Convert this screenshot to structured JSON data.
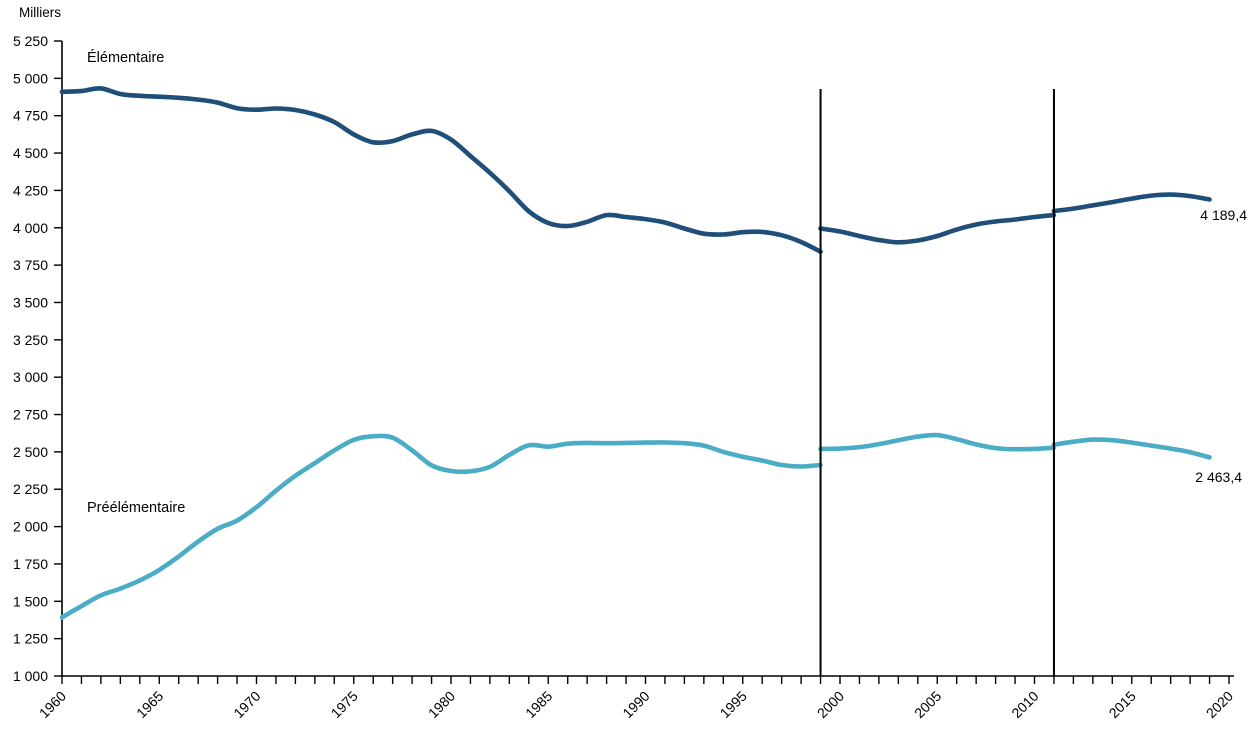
{
  "chart_data": {
    "type": "line",
    "unit_label": "Milliers",
    "text_color": "#000000",
    "axis_color": "#000000",
    "grid": "off",
    "legend_position": "labels-on-chart",
    "y_axis": {
      "min": 1000,
      "max": 5250,
      "step": 250,
      "tick_labels": [
        "1 000",
        "1 250",
        "1 500",
        "1 750",
        "2 000",
        "2 250",
        "2 500",
        "2 750",
        "3 000",
        "3 250",
        "3 500",
        "3 750",
        "4 000",
        "4 250",
        "4 500",
        "4 750",
        "5 000",
        "5 250"
      ]
    },
    "x_axis": {
      "min": 1960,
      "max": 2020,
      "minor_tick_step": 1,
      "label_step": 5,
      "tick_labels": [
        "1960",
        "1965",
        "1970",
        "1975",
        "1980",
        "1985",
        "1990",
        "1995",
        "2000",
        "2005",
        "2010",
        "2015",
        "2020"
      ]
    },
    "break_lines": {
      "years": [
        1999,
        2011
      ],
      "color": "#000000"
    },
    "series": [
      {
        "name": "Élémentaire",
        "color": "#1F4E79",
        "end_label": "4 189,4",
        "segments": [
          {
            "years": [
              1960,
              1961,
              1962,
              1963,
              1964,
              1965,
              1966,
              1967,
              1968,
              1969,
              1970,
              1971,
              1972,
              1973,
              1974,
              1975,
              1976,
              1977,
              1978,
              1979,
              1980,
              1981,
              1982,
              1983,
              1984,
              1985,
              1986,
              1987,
              1988,
              1989,
              1990,
              1991,
              1992,
              1993,
              1994,
              1995,
              1996,
              1997,
              1998,
              1999
            ],
            "values": [
              4910,
              4915,
              4933,
              4895,
              4883,
              4877,
              4870,
              4858,
              4838,
              4800,
              4790,
              4798,
              4788,
              4758,
              4708,
              4625,
              4572,
              4580,
              4625,
              4648,
              4590,
              4480,
              4368,
              4245,
              4110,
              4032,
              4012,
              4040,
              4085,
              4072,
              4058,
              4035,
              3995,
              3960,
              3955,
              3970,
              3972,
              3950,
              3905,
              3840
            ]
          },
          {
            "years": [
              1999,
              2000,
              2001,
              2002,
              2003,
              2004,
              2005,
              2006,
              2007,
              2008,
              2009,
              2010,
              2011
            ],
            "values": [
              3995,
              3975,
              3945,
              3918,
              3903,
              3915,
              3945,
              3988,
              4022,
              4042,
              4055,
              4072,
              4085
            ]
          },
          {
            "years": [
              2011,
              2012,
              2013,
              2014,
              2015,
              2016,
              2017,
              2018,
              2019
            ],
            "values": [
              4112,
              4128,
              4150,
              4172,
              4195,
              4215,
              4222,
              4212,
              4189.4
            ]
          }
        ]
      },
      {
        "name": "Préélémentaire",
        "color": "#4BACC6",
        "end_label": "2 463,4",
        "segments": [
          {
            "years": [
              1960,
              1961,
              1962,
              1963,
              1964,
              1965,
              1966,
              1967,
              1968,
              1969,
              1970,
              1971,
              1972,
              1973,
              1974,
              1975,
              1976,
              1977,
              1978,
              1979,
              1980,
              1981,
              1982,
              1983,
              1984,
              1985,
              1986,
              1987,
              1988,
              1989,
              1990,
              1991,
              1992,
              1993,
              1994,
              1995,
              1996,
              1997,
              1998,
              1999
            ],
            "values": [
              1392,
              1468,
              1540,
              1585,
              1640,
              1710,
              1800,
              1900,
              1985,
              2040,
              2130,
              2240,
              2340,
              2425,
              2510,
              2580,
              2605,
              2595,
              2510,
              2410,
              2372,
              2370,
              2400,
              2480,
              2545,
              2535,
              2555,
              2560,
              2558,
              2560,
              2562,
              2563,
              2558,
              2542,
              2500,
              2468,
              2442,
              2412,
              2402,
              2412
            ]
          },
          {
            "years": [
              1999,
              2000,
              2001,
              2002,
              2003,
              2004,
              2005,
              2006,
              2007,
              2008,
              2009,
              2010,
              2011
            ],
            "values": [
              2520,
              2522,
              2532,
              2552,
              2578,
              2602,
              2612,
              2585,
              2550,
              2525,
              2518,
              2520,
              2528
            ]
          },
          {
            "years": [
              2011,
              2012,
              2013,
              2014,
              2015,
              2016,
              2017,
              2018,
              2019
            ],
            "values": [
              2548,
              2568,
              2582,
              2578,
              2562,
              2542,
              2522,
              2498,
              2463.4
            ]
          }
        ]
      }
    ]
  }
}
